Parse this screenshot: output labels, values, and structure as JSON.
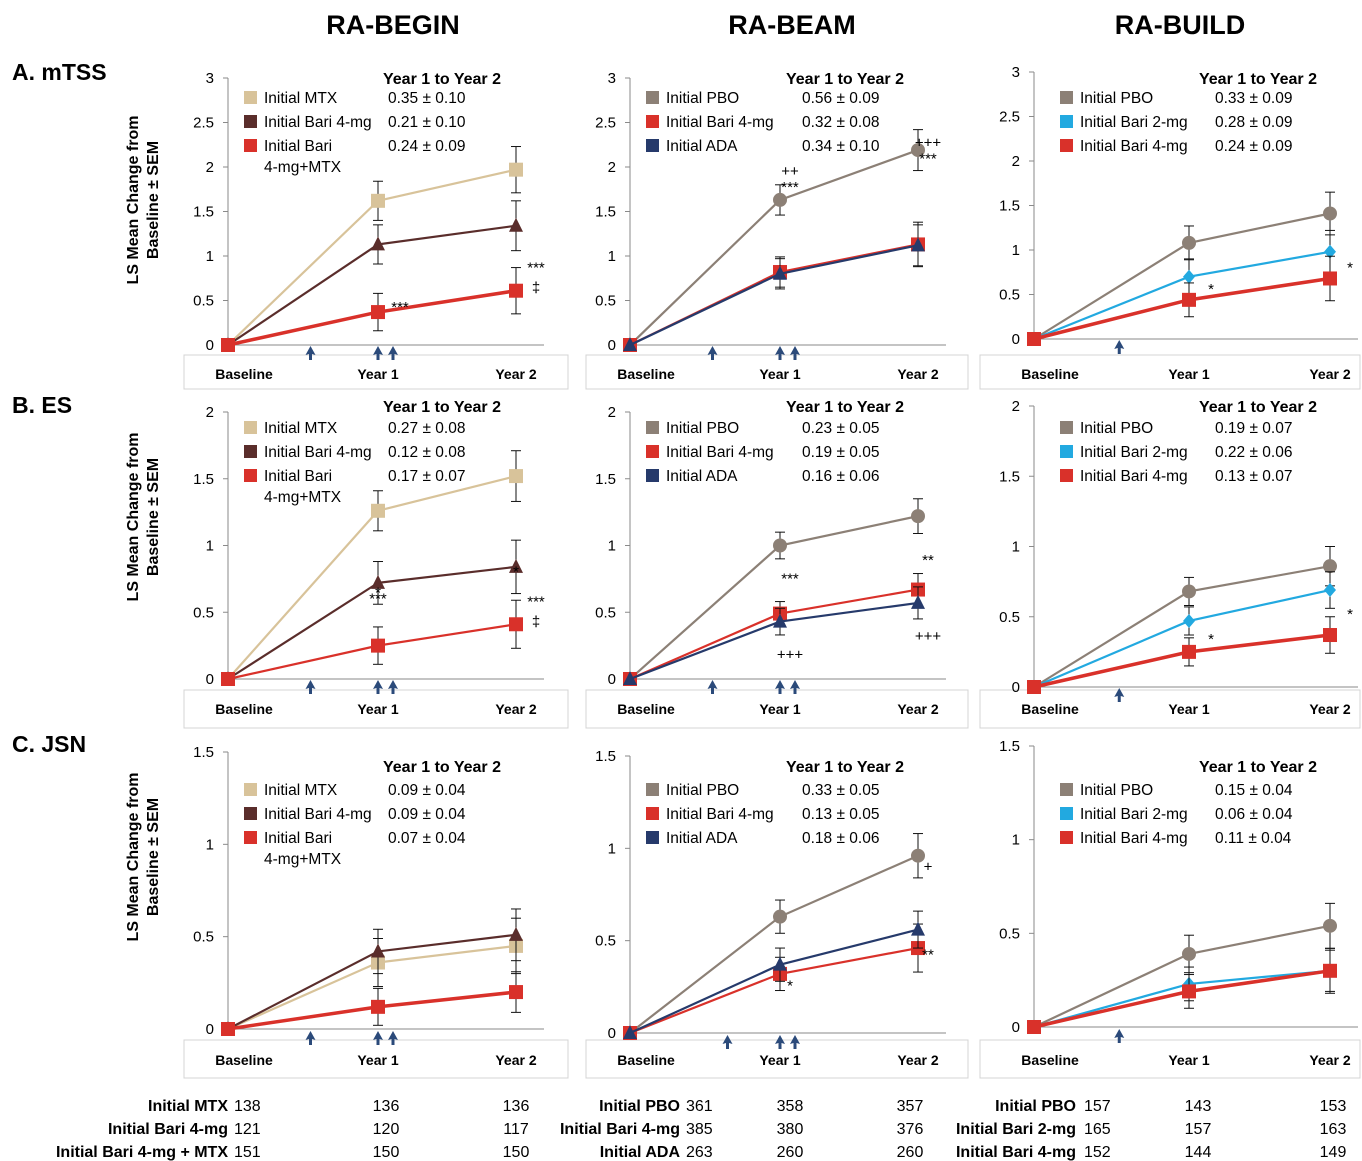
{
  "colors": {
    "MTX": "#d8c39a",
    "Bari4": "#5a2d2b",
    "Bari4MTX": "#d9312a",
    "PBO": "#8c8076",
    "Bari4red": "#d9312a",
    "ADA": "#263a6b",
    "Bari2": "#22a9e0",
    "arrow": "#2b4a7a"
  },
  "column_titles": [
    "RA-BEGIN",
    "RA-BEAM",
    "RA-BUILD"
  ],
  "row_labels": [
    "A. mTSS",
    "B. ES",
    "C. JSN"
  ],
  "ylabel": [
    "LS Mean Change from",
    "Baseline  ± SEM"
  ],
  "legend_title": "Year 1 to Year 2",
  "chart_data": [
    {
      "id": "p00",
      "type": "line",
      "title": "",
      "xlabel": "",
      "ylabel": "LS Mean Change from Baseline ± SEM",
      "categories": [
        "Baseline",
        "Year 1",
        "Year 2"
      ],
      "ylim": [
        0,
        3
      ],
      "yticks": [
        "0",
        "0.5",
        "1",
        "1.5",
        "2",
        "2.5",
        "3"
      ],
      "series": [
        {
          "name": "Initial MTX",
          "color_key": "MTX",
          "marker": "square",
          "values": [
            0,
            1.62,
            1.97
          ],
          "err": [
            0,
            0.22,
            0.26
          ],
          "slope": "0.35 ± 0.10"
        },
        {
          "name": "Initial Bari 4-mg",
          "color_key": "Bari4",
          "marker": "triangle",
          "values": [
            0,
            1.13,
            1.34
          ],
          "err": [
            0,
            0.22,
            0.28
          ],
          "slope": "0.21 ± 0.10"
        },
        {
          "name": "Initial Bari 4-mg+MTX",
          "label_lines": [
            "Initial Bari",
            "4-mg+MTX"
          ],
          "color_key": "Bari4MTX",
          "marker": "square",
          "thick": true,
          "values": [
            0,
            0.37,
            0.61
          ],
          "err": [
            0,
            0.21,
            0.26
          ],
          "slope": "0.24 ± 0.09"
        }
      ],
      "annotations": [
        {
          "text": "***",
          "x": 1,
          "dy": 0
        },
        {
          "text": "***",
          "x": 2,
          "dy": -18
        },
        {
          "text": "‡",
          "x": 2,
          "dy": 2
        }
      ],
      "arrows": [
        0.55,
        1,
        1.1
      ]
    },
    {
      "id": "p01",
      "type": "line",
      "title": "",
      "xlabel": "",
      "ylabel": "",
      "categories": [
        "Baseline",
        "Year 1",
        "Year 2"
      ],
      "ylim": [
        0,
        3
      ],
      "yticks": [
        "0",
        "0.5",
        "1",
        "1.5",
        "2",
        "2.5",
        "3"
      ],
      "series": [
        {
          "name": "Initial PBO",
          "color_key": "PBO",
          "marker": "circle",
          "values": [
            0,
            1.63,
            2.19
          ],
          "err": [
            0,
            0.17,
            0.23
          ],
          "slope": "0.56 ± 0.09"
        },
        {
          "name": "Initial Bari 4-mg",
          "color_key": "Bari4red",
          "marker": "square",
          "values": [
            0,
            0.82,
            1.13
          ],
          "err": [
            0,
            0.17,
            0.25
          ],
          "slope": "0.32 ± 0.08"
        },
        {
          "name": "Initial ADA",
          "color_key": "ADA",
          "marker": "triangle",
          "values": [
            0,
            0.8,
            1.12
          ],
          "err": [
            0,
            0.17,
            0.23
          ],
          "slope": "0.34 ± 0.10"
        }
      ],
      "annotations": [
        {
          "text": "++",
          "x": 1,
          "dy": -98
        },
        {
          "text": "***",
          "x": 1,
          "dy": -82
        },
        {
          "text": "+++",
          "x": 2,
          "dy": -98
        },
        {
          "text": "***",
          "x": 2,
          "dy": -82
        }
      ],
      "arrows": [
        0.55,
        1,
        1.1
      ]
    },
    {
      "id": "p02",
      "type": "line",
      "title": "",
      "xlabel": "",
      "ylabel": "",
      "categories": [
        "Baseline",
        "Year 1",
        "Year 2"
      ],
      "ylim": [
        0,
        3
      ],
      "yticks": [
        "0",
        "0.5",
        "1",
        "1.5",
        "2",
        "2.5",
        "3"
      ],
      "series": [
        {
          "name": "Initial PBO",
          "color_key": "PBO",
          "marker": "circle",
          "values": [
            0,
            1.08,
            1.41
          ],
          "err": [
            0,
            0.19,
            0.24
          ],
          "slope": "0.33 ± 0.09"
        },
        {
          "name": "Initial Bari 2-mg",
          "color_key": "Bari2",
          "marker": "diamond",
          "values": [
            0,
            0.7,
            0.98
          ],
          "err": [
            0,
            0.2,
            0.24
          ],
          "slope": "0.28 ± 0.09"
        },
        {
          "name": "Initial Bari 4-mg",
          "color_key": "Bari4red",
          "marker": "square",
          "thick": true,
          "values": [
            0,
            0.44,
            0.68
          ],
          "err": [
            0,
            0.19,
            0.25
          ],
          "slope": "0.24 ± 0.09"
        }
      ],
      "annotations": [
        {
          "text": "*",
          "x": 1,
          "dy": -6
        },
        {
          "text": "*",
          "x": 2,
          "dy": -6
        }
      ],
      "arrows": [
        0.55
      ]
    },
    {
      "id": "p10",
      "type": "line",
      "title": "",
      "xlabel": "",
      "ylabel": "LS Mean Change from Baseline ± SEM",
      "categories": [
        "Baseline",
        "Year 1",
        "Year 2"
      ],
      "ylim": [
        0,
        2
      ],
      "yticks": [
        "0",
        "0.5",
        "1",
        "1.5",
        "2"
      ],
      "series": [
        {
          "name": "Initial MTX",
          "color_key": "MTX",
          "marker": "square",
          "values": [
            0,
            1.26,
            1.52
          ],
          "err": [
            0,
            0.15,
            0.19
          ],
          "slope": "0.27 ± 0.08"
        },
        {
          "name": "Initial Bari 4-mg",
          "color_key": "Bari4",
          "marker": "triangle",
          "values": [
            0,
            0.72,
            0.84
          ],
          "err": [
            0,
            0.16,
            0.2
          ],
          "slope": "0.12 ± 0.08"
        },
        {
          "name": "Initial Bari 4-mg+MTX",
          "label_lines": [
            "Initial Bari",
            "4-mg+MTX"
          ],
          "color_key": "Bari4MTX",
          "marker": "square",
          "values": [
            0,
            0.25,
            0.41
          ],
          "err": [
            0,
            0.14,
            0.18
          ],
          "slope": "0.17 ± 0.07"
        }
      ],
      "annotations": [
        {
          "text": "*",
          "x": 1,
          "dy": -48
        },
        {
          "text": "***",
          "x": 1,
          "dy": -42
        },
        {
          "text": "*",
          "x": 2,
          "dy": -48
        },
        {
          "text": "***",
          "x": 2,
          "dy": -18
        },
        {
          "text": "‡",
          "x": 2,
          "dy": 2
        }
      ],
      "arrows": [
        0.55,
        1,
        1.1
      ]
    },
    {
      "id": "p11",
      "type": "line",
      "title": "",
      "xlabel": "",
      "ylabel": "",
      "categories": [
        "Baseline",
        "Year 1",
        "Year 2"
      ],
      "ylim": [
        0,
        2
      ],
      "yticks": [
        "0",
        "0.5",
        "1",
        "1.5",
        "2"
      ],
      "series": [
        {
          "name": "Initial PBO",
          "color_key": "PBO",
          "marker": "circle",
          "values": [
            0,
            1.0,
            1.22
          ],
          "err": [
            0,
            0.1,
            0.13
          ],
          "slope": "0.23 ± 0.05"
        },
        {
          "name": "Initial Bari 4-mg",
          "color_key": "Bari4red",
          "marker": "square",
          "values": [
            0,
            0.49,
            0.67
          ],
          "err": [
            0,
            0.09,
            0.12
          ],
          "slope": "0.19 ± 0.05"
        },
        {
          "name": "Initial ADA",
          "color_key": "ADA",
          "marker": "triangle",
          "values": [
            0,
            0.43,
            0.57
          ],
          "err": [
            0,
            0.1,
            0.12
          ],
          "slope": "0.16 ± 0.06"
        }
      ],
      "annotations": [
        {
          "text": "***",
          "x": 1,
          "dy": -38
        },
        {
          "text": "+++",
          "x": 1,
          "dy": 38
        },
        {
          "text": "**",
          "x": 2,
          "dy": -38
        },
        {
          "text": "+++",
          "x": 2,
          "dy": 38
        }
      ],
      "arrows": [
        0.55,
        1,
        1.1
      ]
    },
    {
      "id": "p12",
      "type": "line",
      "title": "",
      "xlabel": "",
      "ylabel": "",
      "categories": [
        "Baseline",
        "Year 1",
        "Year 2"
      ],
      "ylim": [
        0,
        2
      ],
      "yticks": [
        "0",
        "0.5",
        "1",
        "1.5",
        "2"
      ],
      "series": [
        {
          "name": "Initial PBO",
          "color_key": "PBO",
          "marker": "circle",
          "values": [
            0,
            0.68,
            0.86
          ],
          "err": [
            0,
            0.1,
            0.14
          ],
          "slope": "0.19 ± 0.07"
        },
        {
          "name": "Initial Bari 2-mg",
          "color_key": "Bari2",
          "marker": "diamond",
          "values": [
            0,
            0.47,
            0.69
          ],
          "err": [
            0,
            0.1,
            0.13
          ],
          "slope": "0.22 ± 0.06"
        },
        {
          "name": "Initial Bari 4-mg",
          "color_key": "Bari4red",
          "marker": "square",
          "thick": true,
          "values": [
            0,
            0.25,
            0.37
          ],
          "err": [
            0,
            0.1,
            0.13
          ],
          "slope": "0.13 ± 0.07"
        }
      ],
      "annotations": [
        {
          "text": "*",
          "x": 1,
          "dy": -8
        },
        {
          "text": "*",
          "x": 2,
          "dy": -16
        }
      ],
      "arrows": [
        0.55
      ]
    },
    {
      "id": "p20",
      "type": "line",
      "title": "",
      "xlabel": "",
      "ylabel": "LS Mean Change from Baseline ± SEM",
      "categories": [
        "Baseline",
        "Year 1",
        "Year 2"
      ],
      "ylim": [
        0,
        1.5
      ],
      "yticks": [
        "0",
        "0.5",
        "1",
        "1.5"
      ],
      "series": [
        {
          "name": "Initial MTX",
          "color_key": "MTX",
          "marker": "square",
          "values": [
            0,
            0.36,
            0.45
          ],
          "err": [
            0,
            0.13,
            0.15
          ],
          "slope": "0.09 ± 0.04"
        },
        {
          "name": "Initial Bari 4-mg",
          "color_key": "Bari4",
          "marker": "triangle",
          "values": [
            0,
            0.42,
            0.51
          ],
          "err": [
            0,
            0.12,
            0.14
          ],
          "slope": "0.09 ± 0.04"
        },
        {
          "name": "Initial Bari 4-mg+MTX",
          "label_lines": [
            "Initial Bari",
            "4-mg+MTX"
          ],
          "color_key": "Bari4MTX",
          "marker": "square",
          "thick": true,
          "values": [
            0,
            0.12,
            0.2
          ],
          "err": [
            0,
            0.1,
            0.11
          ],
          "slope": "0.07 ± 0.04"
        }
      ],
      "annotations": [],
      "arrows": [
        0.55,
        1,
        1.1
      ]
    },
    {
      "id": "p21",
      "type": "line",
      "title": "",
      "xlabel": "",
      "ylabel": "",
      "categories": [
        "Baseline",
        "Year 1",
        "Year 2"
      ],
      "ylim": [
        0,
        1.5
      ],
      "yticks": [
        "0",
        "0.5",
        "1",
        "1.5"
      ],
      "series": [
        {
          "name": "Initial PBO",
          "color_key": "PBO",
          "marker": "circle",
          "values": [
            0,
            0.63,
            0.96
          ],
          "err": [
            0,
            0.09,
            0.12
          ],
          "slope": "0.33 ± 0.05"
        },
        {
          "name": "Initial Bari 4-mg",
          "color_key": "Bari4red",
          "marker": "square",
          "values": [
            0,
            0.32,
            0.46
          ],
          "err": [
            0,
            0.09,
            0.13
          ],
          "slope": "0.13 ± 0.05"
        },
        {
          "name": "Initial ADA",
          "color_key": "ADA",
          "marker": "triangle",
          "values": [
            0,
            0.37,
            0.56
          ],
          "err": [
            0,
            0.09,
            0.1
          ],
          "slope": "0.18 ± 0.06"
        }
      ],
      "annotations": [
        {
          "text": "*",
          "x": 1,
          "dy": 26
        },
        {
          "text": "+",
          "x": 2,
          "dy": -58
        },
        {
          "text": "**",
          "x": 2,
          "dy": 30
        }
      ],
      "arrows": [
        0.65,
        1,
        1.1
      ]
    },
    {
      "id": "p22",
      "type": "line",
      "title": "",
      "xlabel": "",
      "ylabel": "",
      "categories": [
        "Baseline",
        "Year 1",
        "Year 2"
      ],
      "ylim": [
        0,
        1.5
      ],
      "yticks": [
        "0",
        "0.5",
        "1",
        "1.5"
      ],
      "series": [
        {
          "name": "Initial PBO",
          "color_key": "PBO",
          "marker": "circle",
          "values": [
            0,
            0.39,
            0.54
          ],
          "err": [
            0,
            0.1,
            0.12
          ],
          "slope": "0.15 ± 0.04"
        },
        {
          "name": "Initial Bari 2-mg",
          "color_key": "Bari2",
          "marker": "diamond",
          "values": [
            0,
            0.23,
            0.3
          ],
          "err": [
            0,
            0.09,
            0.11
          ],
          "slope": "0.06 ± 0.04"
        },
        {
          "name": "Initial Bari 4-mg",
          "color_key": "Bari4red",
          "marker": "square",
          "thick": true,
          "values": [
            0,
            0.19,
            0.3
          ],
          "err": [
            0,
            0.09,
            0.12
          ],
          "slope": "0.11 ± 0.04"
        }
      ],
      "annotations": [],
      "arrows": [
        0.55
      ]
    }
  ],
  "n_tables": [
    {
      "rows": [
        {
          "label": "Initial MTX",
          "n": [
            "138",
            "136",
            "136"
          ]
        },
        {
          "label": "Initial Bari 4-mg",
          "n": [
            "121",
            "120",
            "117"
          ]
        },
        {
          "label": "Initial Bari 4-mg + MTX",
          "n": [
            "151",
            "150",
            "150"
          ]
        }
      ]
    },
    {
      "rows": [
        {
          "label": "Initial PBO",
          "n": [
            "361",
            "358",
            "357"
          ]
        },
        {
          "label": "Initial Bari 4-mg",
          "n": [
            "385",
            "380",
            "376"
          ]
        },
        {
          "label": "Initial ADA",
          "n": [
            "263",
            "260",
            "260"
          ]
        }
      ]
    },
    {
      "rows": [
        {
          "label": "Initial PBO",
          "n": [
            "157",
            "143",
            "153"
          ]
        },
        {
          "label": "Initial Bari 2-mg",
          "n": [
            "165",
            "157",
            "163"
          ]
        },
        {
          "label": "Initial Bari 4-mg",
          "n": [
            "152",
            "144",
            "149"
          ]
        }
      ]
    }
  ]
}
